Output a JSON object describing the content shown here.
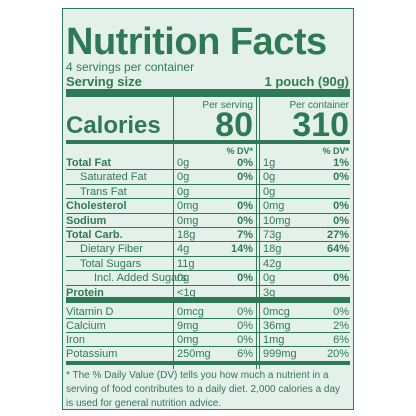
{
  "header": {
    "title": "Nutrition Facts",
    "servings": "4 servings per container",
    "serving_size_label": "Serving size",
    "serving_size_value": "1 pouch (90g)"
  },
  "columns": [
    "Per serving",
    "Per container"
  ],
  "calories": {
    "label": "Calories",
    "values": [
      "80",
      "310"
    ]
  },
  "dv_header": "% DV*",
  "rows": [
    [
      "Total Fat",
      "0g",
      "0%",
      "1g",
      "1%"
    ],
    [
      "Saturated Fat",
      "0g",
      "0%",
      "0g",
      "0%"
    ],
    [
      "Trans Fat",
      "0g",
      null,
      "0g",
      null
    ],
    [
      "Cholesterol",
      "0mg",
      "0%",
      "0mg",
      "0%"
    ],
    [
      "Sodium",
      "0mg",
      "0%",
      "10mg",
      "0%"
    ],
    [
      "Total Carb.",
      "18g",
      "7%",
      "73g",
      "27%"
    ],
    [
      "Dietary Fiber",
      "4g",
      "14%",
      "18g",
      "64%"
    ],
    [
      "Total Sugars",
      "11g",
      null,
      "42g",
      null
    ],
    [
      "Incl. Added Sugars",
      "0g",
      "0%",
      "0g",
      "0%"
    ],
    [
      "Protein",
      "<1g",
      null,
      "3g",
      null
    ]
  ],
  "vitamins": [
    [
      "Vitamin D",
      "0mcg",
      "0%",
      "0mcg",
      "0%"
    ],
    [
      "Calcium",
      "9mg",
      "0%",
      "36mg",
      "2%"
    ],
    [
      "Iron",
      "0mg",
      "0%",
      "1mg",
      "6%"
    ],
    [
      "Potassium",
      "250mg",
      "6%",
      "999mg",
      "20%"
    ]
  ],
  "footnote": "* The % Daily Value (DV) tells you how much a nutrient in a serving of food contributes to a daily diet. 2,000 calories a day is used for general nutrition advice."
}
